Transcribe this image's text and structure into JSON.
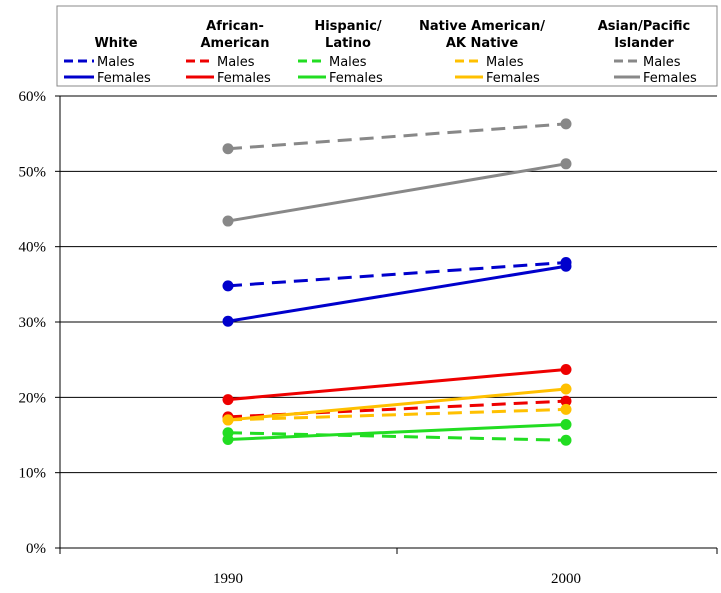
{
  "chart_data": {
    "type": "line",
    "x": [
      "1990",
      "2000"
    ],
    "ylim": [
      0,
      60
    ],
    "y_ticks": [
      "0%",
      "10%",
      "20%",
      "30%",
      "40%",
      "50%",
      "60%"
    ],
    "grid": true,
    "legend_position": "top",
    "legend_groups": [
      {
        "label": "White",
        "label_lines": [
          "White"
        ]
      },
      {
        "label": "African-American",
        "label_lines": [
          "African-",
          "American"
        ]
      },
      {
        "label": "Hispanic/Latino",
        "label_lines": [
          "Hispanic/",
          "Latino"
        ]
      },
      {
        "label": "Native American/AK Native",
        "label_lines": [
          "Native American/",
          "AK Native"
        ]
      },
      {
        "label": "Asian/Pacific Islander",
        "label_lines": [
          "Asian/Pacific",
          "Islander"
        ]
      }
    ],
    "legend_item_labels": {
      "males": "Males",
      "females": "Females"
    },
    "series": [
      {
        "group": 0,
        "sex": "males",
        "dashed": true,
        "color": "#0000CC",
        "values": [
          34.8,
          37.9
        ]
      },
      {
        "group": 0,
        "sex": "females",
        "dashed": false,
        "color": "#0000CC",
        "values": [
          30.1,
          37.4
        ]
      },
      {
        "group": 1,
        "sex": "males",
        "dashed": true,
        "color": "#EE0000",
        "values": [
          17.4,
          19.5
        ]
      },
      {
        "group": 1,
        "sex": "females",
        "dashed": false,
        "color": "#EE0000",
        "values": [
          19.7,
          23.7
        ]
      },
      {
        "group": 2,
        "sex": "males",
        "dashed": true,
        "color": "#22DD22",
        "values": [
          15.3,
          14.3
        ]
      },
      {
        "group": 2,
        "sex": "females",
        "dashed": false,
        "color": "#22DD22",
        "values": [
          14.4,
          16.4
        ]
      },
      {
        "group": 3,
        "sex": "males",
        "dashed": true,
        "color": "#FFC000",
        "values": [
          17.0,
          18.4
        ]
      },
      {
        "group": 3,
        "sex": "females",
        "dashed": false,
        "color": "#FFC000",
        "values": [
          17.0,
          21.1
        ]
      },
      {
        "group": 4,
        "sex": "males",
        "dashed": true,
        "color": "#888888",
        "values": [
          53.0,
          56.3
        ]
      },
      {
        "group": 4,
        "sex": "females",
        "dashed": false,
        "color": "#888888",
        "values": [
          43.4,
          51.0
        ]
      }
    ]
  }
}
